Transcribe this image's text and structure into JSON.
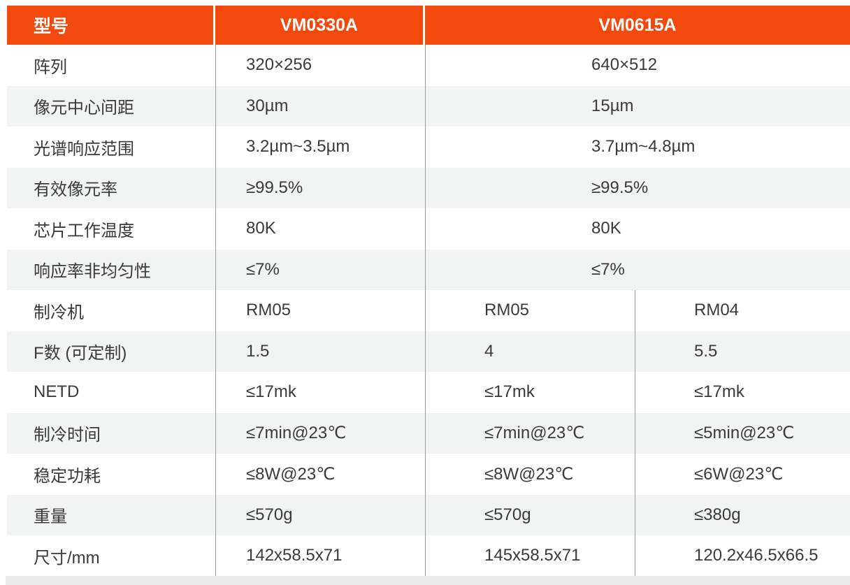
{
  "table": {
    "header": {
      "model_label": "型号",
      "col_vm0330a": "VM0330A",
      "col_vm0615a": "VM0615A"
    },
    "rows": [
      {
        "label": "阵列",
        "vm0330a": "320×256",
        "merged": true,
        "vm0615a": "640×512"
      },
      {
        "label": "像元中心间距",
        "vm0330a": "30µm",
        "merged": true,
        "vm0615a": "15µm"
      },
      {
        "label": "光谱响应范围",
        "vm0330a": "3.2µm~3.5µm",
        "merged": true,
        "vm0615a": "3.7µm~4.8µm"
      },
      {
        "label": "有效像元率",
        "vm0330a": "≥99.5%",
        "merged": true,
        "vm0615a": "≥99.5%"
      },
      {
        "label": "芯片工作温度",
        "vm0330a": "80K",
        "merged": true,
        "vm0615a": "80K"
      },
      {
        "label": "响应率非均匀性",
        "vm0330a": "≤7%",
        "merged": true,
        "vm0615a": "≤7%"
      },
      {
        "label": "制冷机",
        "vm0330a": "RM05",
        "merged": false,
        "vm0615a_rm05": "RM05",
        "vm0615a_rm04": "RM04"
      },
      {
        "label": "F数 (可定制)",
        "vm0330a": "1.5",
        "merged": false,
        "vm0615a_rm05": "4",
        "vm0615a_rm04": "5.5"
      },
      {
        "label": "NETD",
        "vm0330a": "≤17mk",
        "merged": false,
        "vm0615a_rm05": "≤17mk",
        "vm0615a_rm04": "≤17mk"
      },
      {
        "label": "制冷时间",
        "vm0330a": "≤7min@23℃",
        "merged": false,
        "vm0615a_rm05": "≤7min@23℃",
        "vm0615a_rm04": "≤5min@23℃"
      },
      {
        "label": "稳定功耗",
        "vm0330a": "≤8W@23℃",
        "merged": false,
        "vm0615a_rm05": "≤8W@23℃",
        "vm0615a_rm04": "≤6W@23℃"
      },
      {
        "label": "重量",
        "vm0330a": "≤570g",
        "merged": false,
        "vm0615a_rm05": "≤570g",
        "vm0615a_rm04": "≤380g"
      },
      {
        "label": "尺寸/mm",
        "vm0330a": "142x58.5x71",
        "merged": false,
        "vm0615a_rm05": "145x58.5x71",
        "vm0615a_rm04": "120.2x46.5x66.5"
      }
    ],
    "colors": {
      "header_bg": "#F3490D",
      "header_text": "#FFFFFF",
      "row_alt_bg": "#F2F3F3",
      "body_text": "#3A3A3A",
      "divider_line": "#9B9B9B",
      "bottom_strip": "#EBEBEB"
    }
  }
}
